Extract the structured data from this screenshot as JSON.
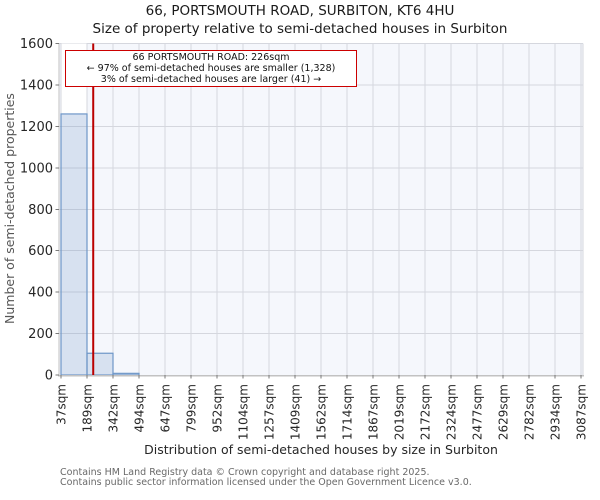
{
  "chart_data": {
    "type": "bar",
    "histogram": true,
    "title": "66, PORTSMOUTH ROAD, SURBITON, KT6 4HU",
    "subtitle": "Size of property relative to semi-detached houses in Surbiton",
    "xlabel": "Distribution of semi-detached houses by size in Surbiton",
    "ylabel": "Number of semi-detached properties",
    "categories": [
      "37sqm",
      "189sqm",
      "342sqm",
      "494sqm",
      "647sqm",
      "799sqm",
      "952sqm",
      "1104sqm",
      "1257sqm",
      "1409sqm",
      "1562sqm",
      "1714sqm",
      "1867sqm",
      "2019sqm",
      "2172sqm",
      "2324sqm",
      "2477sqm",
      "2629sqm",
      "2782sqm",
      "2934sqm",
      "3087sqm"
    ],
    "bin_edges_sqm": [
      37,
      189,
      342,
      494,
      647,
      799,
      952,
      1104,
      1257,
      1409,
      1562,
      1714,
      1867,
      2019,
      2172,
      2324,
      2477,
      2629,
      2782,
      2934,
      3087
    ],
    "values": [
      1260,
      105,
      8,
      0,
      0,
      0,
      0,
      0,
      0,
      0,
      0,
      0,
      0,
      0,
      0,
      0,
      0,
      0,
      0,
      0
    ],
    "ylim": [
      0,
      1600
    ],
    "yticks": [
      0,
      200,
      400,
      600,
      800,
      1000,
      1200,
      1400,
      1600
    ],
    "grid": true,
    "legend": "none",
    "x_tick_rotation_deg": 90,
    "marker": {
      "value_sqm": 226
    },
    "annotation": {
      "line1": "66 PORTSMOUTH ROAD: 226sqm",
      "line2": "← 97% of semi-detached houses are smaller (1,328)",
      "line3": "3% of semi-detached houses are larger (41) →"
    }
  },
  "colors": {
    "plot_bg": "#f5f7fc",
    "grid": "#d5d7de",
    "bar_fill": "rgba(110,150,201,0.22)",
    "bar_edge": "#6e97c8",
    "marker_line": "#bb0000",
    "annotation_border": "#cc0000",
    "spine": "#c2c2c2",
    "tick_mark": "#7a7a7a",
    "tick_text": "#262626"
  },
  "footer": {
    "line1": "Contains HM Land Registry data © Crown copyright and database right 2025.",
    "line2": "Contains public sector information licensed under the Open Government Licence v3.0."
  }
}
